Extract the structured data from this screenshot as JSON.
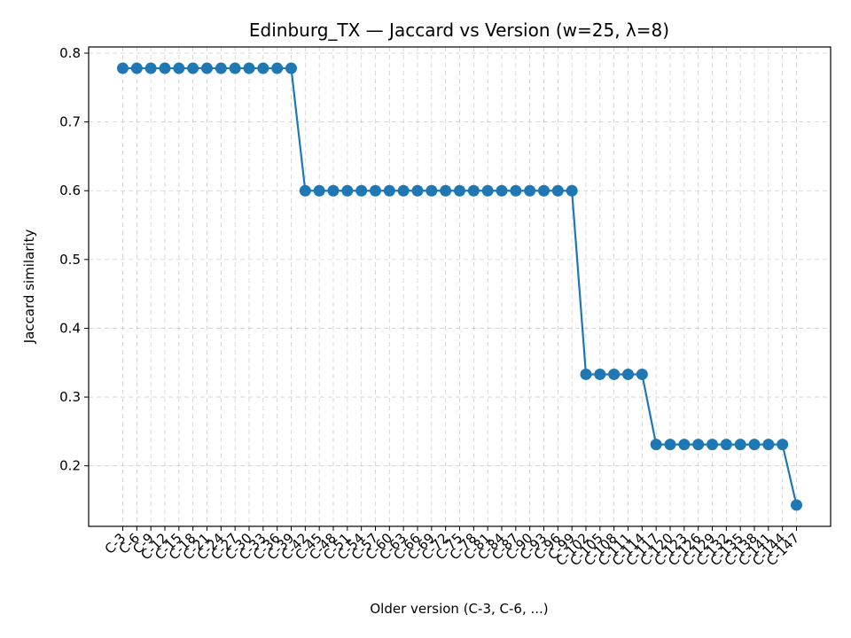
{
  "chart_data": {
    "type": "line",
    "title": "Edinburg_TX — Jaccard vs Version (w=25, λ=8)",
    "xlabel": "Older version (C-3, C-6, ...)",
    "ylabel": "Jaccard similarity",
    "categories": [
      "C-3",
      "C-6",
      "C-9",
      "C-12",
      "C-15",
      "C-18",
      "C-21",
      "C-24",
      "C-27",
      "C-30",
      "C-33",
      "C-36",
      "C-39",
      "C-42",
      "C-45",
      "C-48",
      "C-51",
      "C-54",
      "C-57",
      "C-60",
      "C-63",
      "C-66",
      "C-69",
      "C-72",
      "C-75",
      "C-78",
      "C-81",
      "C-84",
      "C-87",
      "C-90",
      "C-93",
      "C-96",
      "C-99",
      "C-102",
      "C-105",
      "C-108",
      "C-111",
      "C-114",
      "C-117",
      "C-120",
      "C-123",
      "C-126",
      "C-129",
      "C-132",
      "C-135",
      "C-138",
      "C-141",
      "C-144",
      "C-147"
    ],
    "series": [
      {
        "color": "#1f77b4",
        "values": [
          0.778,
          0.778,
          0.778,
          0.778,
          0.778,
          0.778,
          0.778,
          0.778,
          0.778,
          0.778,
          0.778,
          0.778,
          0.778,
          0.6,
          0.6,
          0.6,
          0.6,
          0.6,
          0.6,
          0.6,
          0.6,
          0.6,
          0.6,
          0.6,
          0.6,
          0.6,
          0.6,
          0.6,
          0.6,
          0.6,
          0.6,
          0.6,
          0.6,
          0.333,
          0.333,
          0.333,
          0.333,
          0.333,
          0.231,
          0.231,
          0.231,
          0.231,
          0.231,
          0.231,
          0.231,
          0.231,
          0.231,
          0.231,
          0.143
        ]
      }
    ],
    "yticks": [
      "0.2",
      "0.3",
      "0.4",
      "0.5",
      "0.6",
      "0.7",
      "0.8"
    ],
    "ylim": [
      0.112,
      0.809
    ],
    "grid": true,
    "legend": "none"
  }
}
